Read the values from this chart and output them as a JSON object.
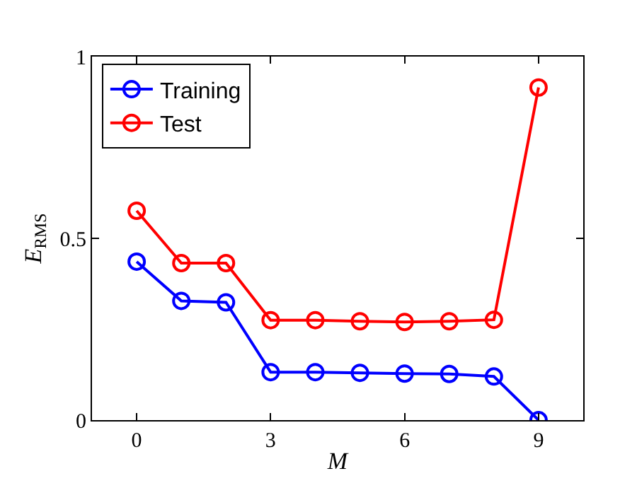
{
  "chart_data": {
    "type": "line",
    "xlabel": "M",
    "ylabel": "E$_{RMS}$",
    "x": [
      0,
      1,
      2,
      3,
      4,
      5,
      6,
      7,
      8,
      9
    ],
    "series": [
      {
        "name": "Training",
        "color": "#0000ff",
        "values": [
          0.436,
          0.328,
          0.324,
          0.132,
          0.132,
          0.13,
          0.128,
          0.127,
          0.12,
          0.0
        ]
      },
      {
        "name": "Test",
        "color": "#ff0000",
        "values": [
          0.576,
          0.432,
          0.432,
          0.275,
          0.275,
          0.272,
          0.27,
          0.272,
          0.276,
          0.915
        ]
      }
    ],
    "xlim": [
      -1,
      10
    ],
    "xticks": [
      0,
      3,
      6,
      9
    ],
    "ylim": [
      0,
      1
    ],
    "yticks": [
      0,
      0.5,
      1
    ],
    "legend": "top left",
    "marker": "circle",
    "line_style": "solid"
  }
}
